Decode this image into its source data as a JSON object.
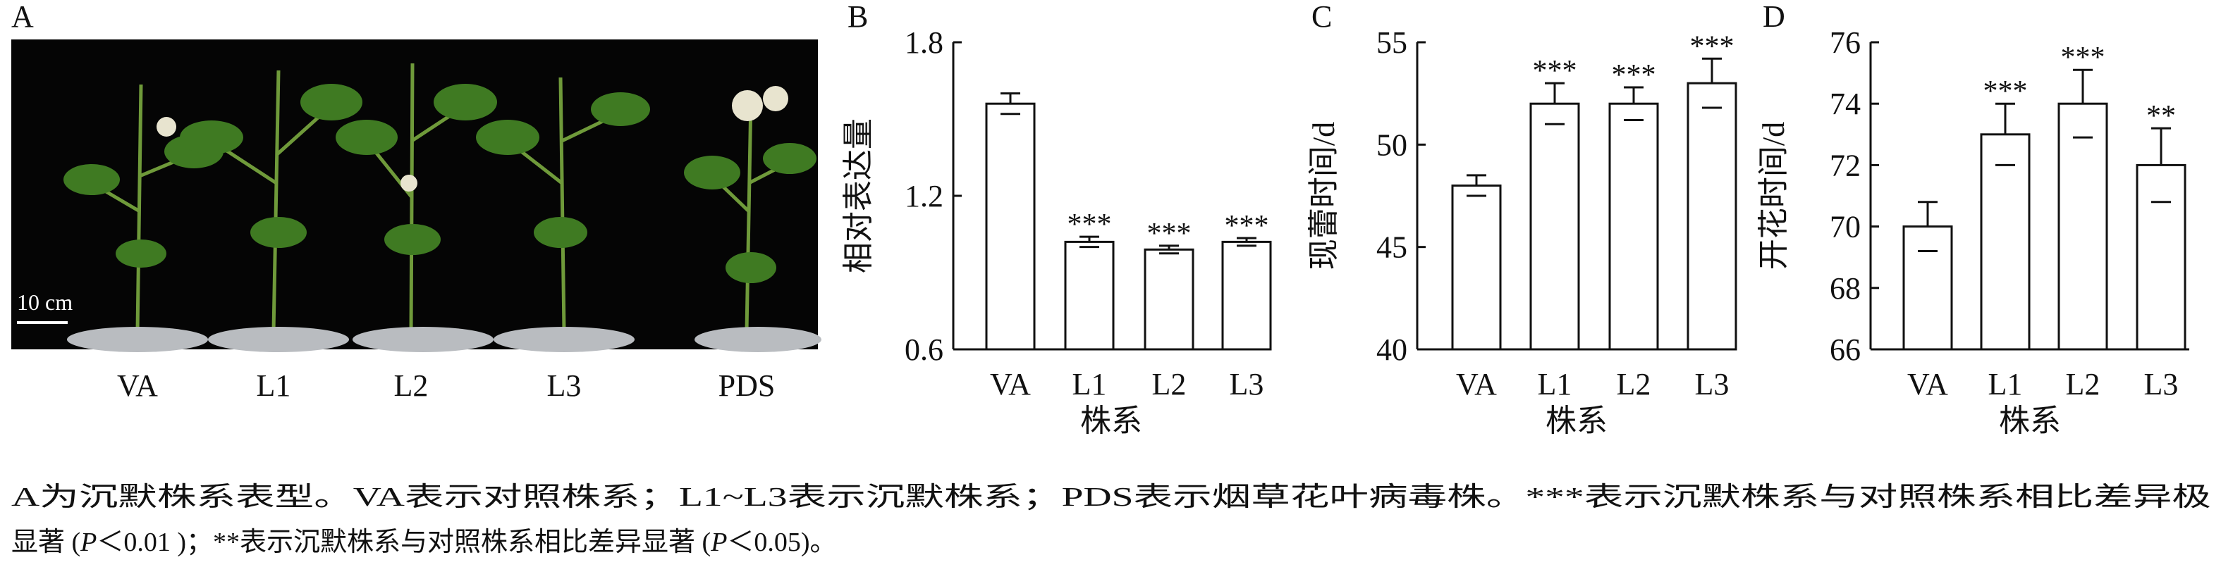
{
  "panel_a": {
    "panel": "A",
    "scale_bar": "10 cm",
    "labels": [
      "VA",
      "L1",
      "L2",
      "L3",
      "PDS"
    ]
  },
  "chart_data": [
    {
      "type": "bar",
      "panel": "B",
      "y_label": "相对表达量",
      "x_label": "株系",
      "categories": [
        "VA",
        "L1",
        "L2",
        "L3"
      ],
      "values": [
        1.56,
        1.02,
        0.99,
        1.02
      ],
      "errors": [
        0.04,
        0.02,
        0.015,
        0.015
      ],
      "annotations": [
        null,
        "***",
        "***",
        "***"
      ],
      "ylim": [
        0.6,
        1.8
      ],
      "yticks": [
        0.6,
        1.2,
        1.8
      ],
      "color": "#ffffff"
    },
    {
      "type": "bar",
      "panel": "C",
      "y_label": "现蕾时间/d",
      "x_label": "株系",
      "categories": [
        "VA",
        "L1",
        "L2",
        "L3"
      ],
      "values": [
        48,
        52,
        52,
        53
      ],
      "errors": [
        0.5,
        1,
        0.8,
        1.2
      ],
      "annotations": [
        null,
        "***",
        "***",
        "***"
      ],
      "ylim": [
        40,
        55
      ],
      "yticks": [
        40,
        45,
        50,
        55
      ],
      "color": "#ffffff"
    },
    {
      "type": "bar",
      "panel": "D",
      "y_label": "开花时间/d",
      "x_label": "株系",
      "categories": [
        "VA",
        "L1",
        "L2",
        "L3"
      ],
      "values": [
        70,
        73,
        74,
        72
      ],
      "errors": [
        0.8,
        1,
        1.1,
        1.2
      ],
      "annotations": [
        null,
        "***",
        "***",
        "**"
      ],
      "ylim": [
        66,
        76
      ],
      "yticks": [
        66,
        68,
        70,
        72,
        74,
        76
      ],
      "color": "#ffffff"
    }
  ],
  "caption": {
    "line1": "A为沉默株系表型。VA表示对照株系；L1~L3表示沉默株系；PDS表示烟草花叶病毒株。***表示沉默株系与对照株系相比差异极",
    "line2": [
      "显著 (",
      "P",
      "＜0.01 )；**表示沉默株系与对照株系相比差异显著 (",
      "P",
      "＜0.05)。"
    ]
  }
}
